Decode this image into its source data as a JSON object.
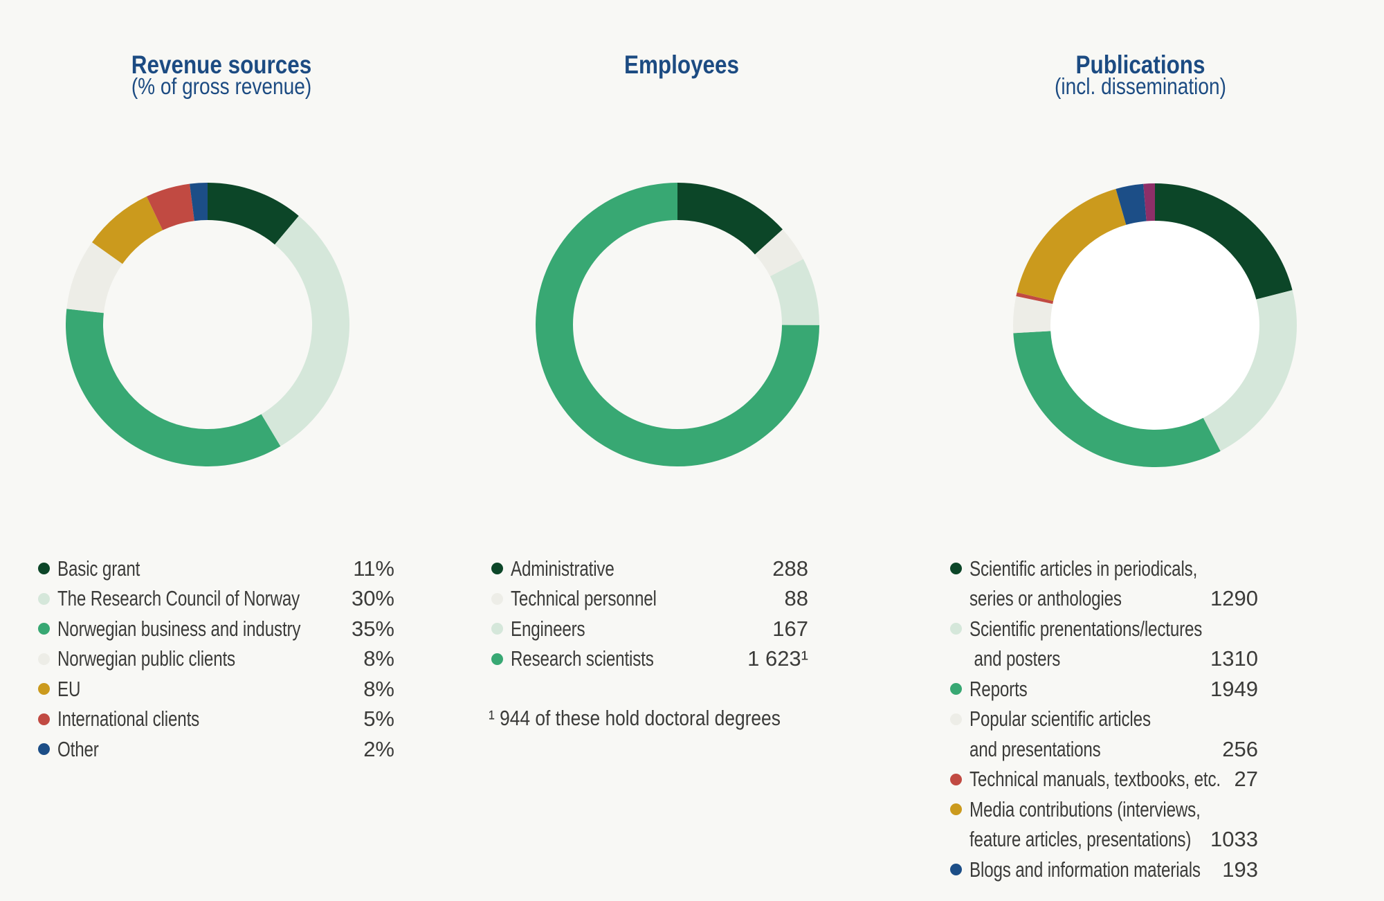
{
  "page": {
    "background_color": "#f8f8f5",
    "title_color": "#1c4b82",
    "text_color": "#3b3b39"
  },
  "chart_data": [
    {
      "type": "donut",
      "title": "Revenue sources",
      "subtitle": "(% of gross revenue)",
      "start_angle_deg": 0,
      "direction": "clockwise",
      "inner_radius_ratio": 0.74,
      "legend_position": "bottom",
      "hole_color": "",
      "footnote": "",
      "segments": [
        {
          "label": "Basic grant",
          "value": 11,
          "display": "11%",
          "color": "#0c4628"
        },
        {
          "label": "The Research Council of Norway",
          "value": 30,
          "display": "30%",
          "color": "#d5e7da"
        },
        {
          "label": "Norwegian business and industry",
          "value": 35,
          "display": "35%",
          "color": "#38a873"
        },
        {
          "label": "Norwegian public clients",
          "value": 8,
          "display": "8%",
          "color": "#edede7"
        },
        {
          "label": "EU",
          "value": 8,
          "display": "8%",
          "color": "#cb9a1d"
        },
        {
          "label": "International clients",
          "value": 5,
          "display": "5%",
          "color": "#c14a42"
        },
        {
          "label": "Other",
          "value": 2,
          "display": "2%",
          "color": "#1c4e87"
        }
      ]
    },
    {
      "type": "donut",
      "title": "Employees",
      "subtitle": "",
      "start_angle_deg": 0,
      "direction": "clockwise",
      "inner_radius_ratio": 0.74,
      "legend_position": "bottom",
      "hole_color": "",
      "footnote": "¹ 944 of these hold doctoral degrees",
      "segments": [
        {
          "label": "Administrative",
          "value": 288,
          "display": "288",
          "color": "#0c4628"
        },
        {
          "label": "Technical personnel",
          "value": 88,
          "display": "88",
          "color": "#edede7"
        },
        {
          "label": "Engineers",
          "value": 167,
          "display": "167",
          "color": "#d5e7da"
        },
        {
          "label": "Research scientists",
          "value": 1623,
          "display": "1 623¹",
          "color": "#38a873"
        }
      ]
    },
    {
      "type": "donut",
      "title": "Publications",
      "subtitle": "(incl. dissemination)",
      "start_angle_deg": 0,
      "direction": "clockwise",
      "inner_radius_ratio": 0.74,
      "legend_position": "bottom",
      "hole_color": "#ffffff",
      "footnote": "",
      "segments": [
        {
          "label": "Scientific articles in periodicals, series or anthologies",
          "label_lines": [
            "Scientific articles in periodicals,",
            "series or anthologies"
          ],
          "value": 1290,
          "display": "1290",
          "color": "#0c4628"
        },
        {
          "label": "Scientific prenentations/lectures and posters",
          "label_lines": [
            "Scientific prenentations/lectures",
            " and posters"
          ],
          "value": 1310,
          "display": "1310",
          "color": "#d5e7da"
        },
        {
          "label": "Reports",
          "value": 1949,
          "display": "1949",
          "color": "#38a873"
        },
        {
          "label": "Popular scientific articles and presentations",
          "label_lines": [
            "Popular scientific articles",
            "and presentations"
          ],
          "value": 256,
          "display": "256",
          "color": "#edede7"
        },
        {
          "label": "Technical manuals, textbooks, etc.",
          "value": 27,
          "display": "27",
          "color": "#c14a42"
        },
        {
          "label": "Media contributions (interviews, feature articles, presentations)",
          "label_lines": [
            "Media contributions (interviews,",
            "feature articles, presentations)"
          ],
          "value": 1033,
          "display": "1033",
          "color": "#cb9a1d"
        },
        {
          "label": "Blogs and information materials",
          "value": 193,
          "display": "193",
          "color": "#1c4e87"
        },
        {
          "label": "",
          "value": 80,
          "display": "",
          "color": "#8e2f68",
          "in_legend": false
        }
      ]
    }
  ]
}
